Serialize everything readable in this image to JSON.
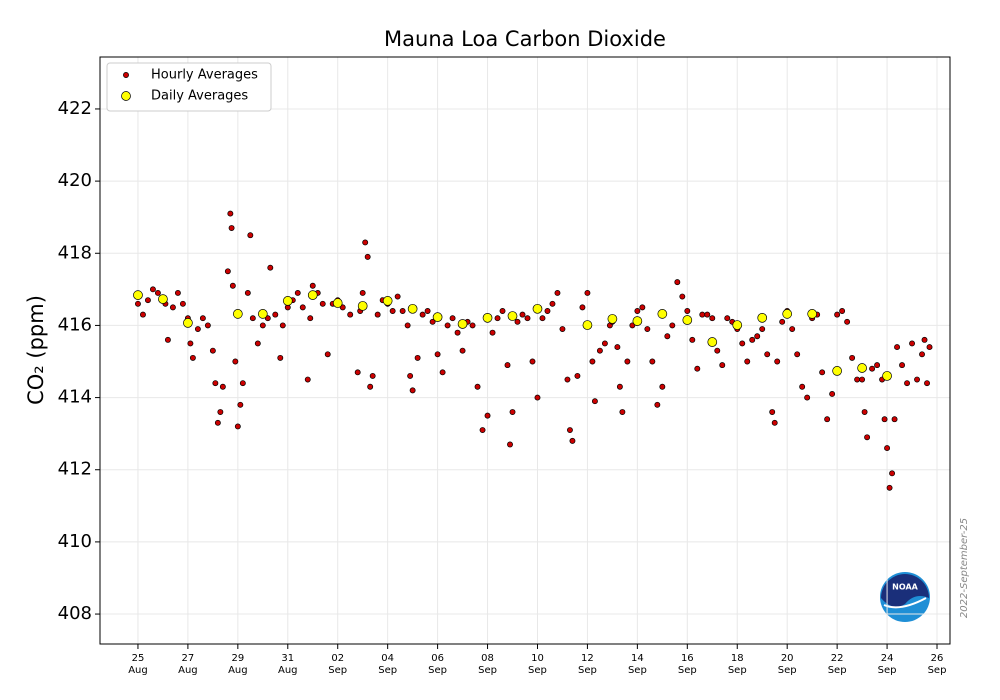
{
  "chart_data": {
    "type": "scatter",
    "title": "Mauna Loa Carbon Dioxide",
    "ylabel": "CO₂ (ppm)",
    "annotation": "2022-September-25",
    "grid": true,
    "legend": "upper left",
    "xlim": [
      -1.52,
      32.52
    ],
    "ylim": [
      407.17,
      423.44
    ],
    "yticks": [
      408,
      410,
      412,
      414,
      416,
      418,
      420,
      422
    ],
    "xticks": [
      {
        "value": 0,
        "label": "25 Aug"
      },
      {
        "value": 2,
        "label": "27 Aug"
      },
      {
        "value": 4,
        "label": "29 Aug"
      },
      {
        "value": 6,
        "label": "31 Aug"
      },
      {
        "value": 8,
        "label": "02 Sep"
      },
      {
        "value": 10,
        "label": "04 Sep"
      },
      {
        "value": 12,
        "label": "06 Sep"
      },
      {
        "value": 14,
        "label": "08 Sep"
      },
      {
        "value": 16,
        "label": "10 Sep"
      },
      {
        "value": 18,
        "label": "12 Sep"
      },
      {
        "value": 20,
        "label": "14 Sep"
      },
      {
        "value": 22,
        "label": "16 Sep"
      },
      {
        "value": 24,
        "label": "18 Sep"
      },
      {
        "value": 26,
        "label": "20 Sep"
      },
      {
        "value": 28,
        "label": "22 Sep"
      },
      {
        "value": 30,
        "label": "24 Sep"
      },
      {
        "value": 32,
        "label": "26 Sep"
      }
    ],
    "series": [
      {
        "name": "Hourly Averages",
        "color": "#cc0000",
        "size": 2.6,
        "x": [
          0.0,
          0.2,
          0.4,
          0.6,
          0.8,
          1.1,
          1.2,
          1.4,
          1.6,
          1.8,
          2.0,
          2.1,
          2.2,
          2.4,
          2.6,
          2.8,
          3.0,
          3.1,
          3.2,
          3.3,
          3.4,
          3.6,
          3.7,
          3.75,
          3.8,
          3.9,
          4.0,
          4.1,
          4.2,
          4.4,
          4.5,
          4.6,
          4.8,
          5.0,
          5.2,
          5.3,
          5.5,
          5.7,
          5.8,
          6.0,
          6.2,
          6.4,
          6.6,
          6.8,
          6.9,
          7.0,
          7.2,
          7.4,
          7.6,
          7.8,
          8.0,
          8.2,
          8.5,
          8.8,
          8.9,
          9.0,
          9.1,
          9.2,
          9.3,
          9.4,
          9.6,
          9.8,
          10.0,
          10.2,
          10.4,
          10.6,
          10.8,
          10.9,
          11.0,
          11.2,
          11.4,
          11.6,
          11.8,
          12.0,
          12.2,
          12.4,
          12.6,
          12.8,
          13.0,
          13.2,
          13.4,
          13.6,
          13.8,
          14.0,
          14.2,
          14.4,
          14.6,
          14.8,
          14.9,
          15.0,
          15.2,
          15.4,
          15.6,
          15.8,
          16.0,
          16.2,
          16.4,
          16.6,
          16.8,
          17.0,
          17.2,
          17.3,
          17.4,
          17.6,
          17.8,
          18.0,
          18.2,
          18.3,
          18.5,
          18.7,
          18.9,
          19.0,
          19.2,
          19.3,
          19.4,
          19.6,
          19.8,
          20.0,
          20.2,
          20.4,
          20.6,
          20.8,
          21.0,
          21.2,
          21.4,
          21.6,
          21.8,
          22.0,
          22.2,
          22.4,
          22.6,
          22.8,
          23.0,
          23.2,
          23.4,
          23.6,
          23.8,
          24.0,
          24.2,
          24.4,
          24.6,
          24.8,
          25.0,
          25.2,
          25.4,
          25.5,
          25.6,
          25.8,
          26.0,
          26.2,
          26.4,
          26.6,
          26.8,
          27.0,
          27.2,
          27.4,
          27.6,
          27.8,
          28.0,
          28.2,
          28.4,
          28.6,
          28.8,
          29.0,
          29.1,
          29.2,
          29.4,
          29.6,
          29.8,
          29.9,
          30.0,
          30.1,
          30.2,
          30.3,
          30.4,
          30.6,
          30.8,
          31.0,
          31.2,
          31.4,
          31.5,
          31.6,
          31.7
        ],
        "values": [
          416.6,
          416.3,
          416.7,
          417.0,
          416.9,
          416.6,
          415.6,
          416.5,
          416.9,
          416.6,
          416.2,
          415.5,
          415.1,
          415.9,
          416.2,
          416.0,
          415.3,
          414.4,
          413.3,
          413.6,
          414.3,
          417.5,
          419.1,
          418.7,
          417.1,
          415.0,
          413.2,
          413.8,
          414.4,
          416.9,
          418.5,
          416.2,
          415.5,
          416.0,
          416.2,
          417.6,
          416.3,
          415.1,
          416.0,
          416.5,
          416.7,
          416.9,
          416.5,
          414.5,
          416.2,
          417.1,
          416.9,
          416.6,
          415.2,
          416.6,
          416.7,
          416.5,
          416.3,
          414.7,
          416.4,
          416.9,
          418.3,
          417.9,
          414.3,
          414.6,
          416.3,
          416.7,
          416.6,
          416.4,
          416.8,
          416.4,
          416.0,
          414.6,
          414.2,
          415.1,
          416.3,
          416.4,
          416.1,
          415.2,
          414.7,
          416.0,
          416.2,
          415.8,
          415.3,
          416.1,
          416.0,
          414.3,
          413.1,
          413.5,
          415.8,
          416.2,
          416.4,
          414.9,
          412.7,
          413.6,
          416.1,
          416.3,
          416.2,
          415.0,
          414.0,
          416.2,
          416.4,
          416.6,
          416.9,
          415.9,
          414.5,
          413.1,
          412.8,
          414.6,
          416.5,
          416.9,
          415.0,
          413.9,
          415.3,
          415.5,
          416.0,
          416.1,
          415.4,
          414.3,
          413.6,
          415.0,
          416.0,
          416.4,
          416.5,
          415.9,
          415.0,
          413.8,
          414.3,
          415.7,
          416.0,
          417.2,
          416.8,
          416.4,
          415.6,
          414.8,
          416.3,
          416.3,
          416.2,
          415.3,
          414.9,
          416.2,
          416.1,
          415.9,
          415.5,
          415.0,
          415.6,
          415.7,
          415.9,
          415.2,
          413.6,
          413.3,
          415.0,
          416.1,
          416.4,
          415.9,
          415.2,
          414.3,
          414.0,
          416.2,
          416.3,
          414.7,
          413.4,
          414.1,
          416.3,
          416.4,
          416.1,
          415.1,
          414.5,
          414.5,
          413.6,
          412.9,
          414.8,
          414.9,
          414.5,
          413.4,
          412.6,
          411.5,
          411.9,
          413.4,
          415.4,
          414.9,
          414.4,
          415.5,
          414.5,
          415.2,
          415.6,
          414.4,
          415.4
        ]
      },
      {
        "name": "Daily Averages",
        "color": "#ffff00",
        "size": 4.5,
        "x": [
          0,
          1,
          2,
          4,
          5,
          6,
          7,
          8,
          9,
          10,
          11,
          12,
          13,
          14,
          15,
          16,
          18,
          19,
          20,
          21,
          22,
          23,
          24,
          25,
          26,
          27,
          28,
          29,
          30
        ],
        "values": [
          416.84,
          416.73,
          416.07,
          416.32,
          416.32,
          416.68,
          416.84,
          416.62,
          416.54,
          416.68,
          416.46,
          416.23,
          416.04,
          416.21,
          416.26,
          416.46,
          416.01,
          416.18,
          416.12,
          416.32,
          416.15,
          415.54,
          416.01,
          416.21,
          416.32,
          416.32,
          414.74,
          414.82,
          414.6
        ]
      }
    ]
  }
}
